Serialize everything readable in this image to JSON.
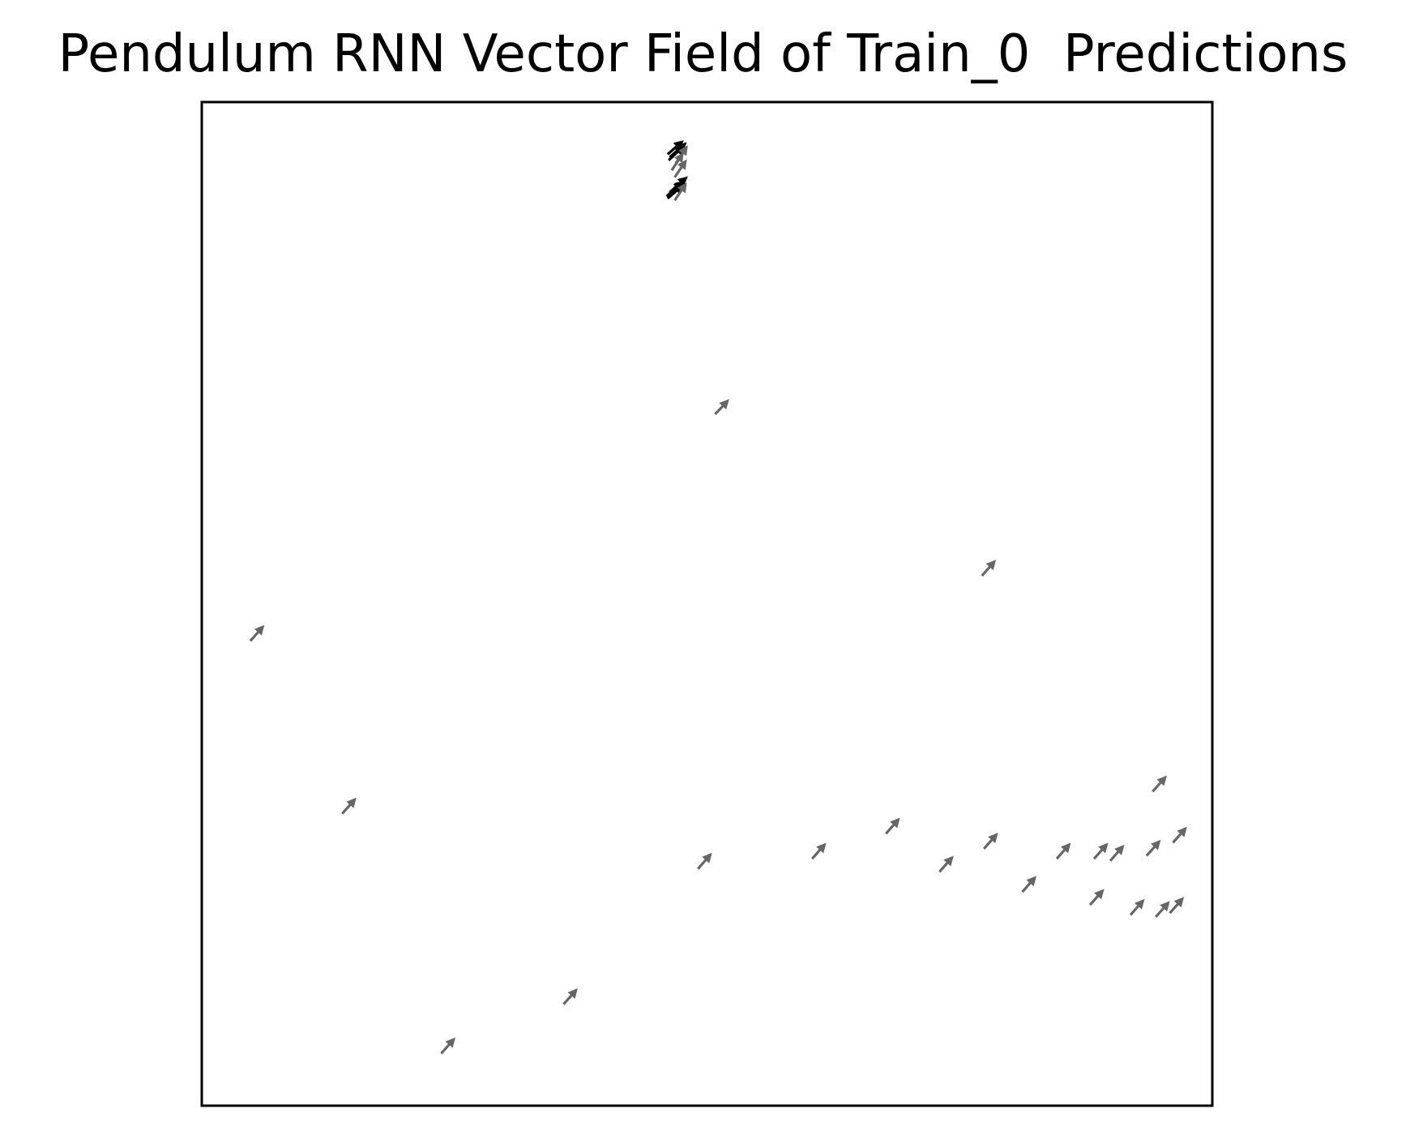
{
  "chart_data": {
    "type": "quiver",
    "title": "Pendulum RNN Vector Field of Train_0  Predictions",
    "xlabel": "",
    "ylabel": "",
    "xlim": [
      0,
      1
    ],
    "ylim": [
      0,
      1
    ],
    "axis_ticks": "none",
    "grid": false,
    "legend": "none",
    "arrow_color": "#666666",
    "cluster_color": "#000000",
    "vectors": [
      {
        "x": 0.463,
        "y": 0.91,
        "u": 0.018,
        "v": 0.016
      },
      {
        "x": 0.462,
        "y": 0.908,
        "u": 0.016,
        "v": 0.014
      },
      {
        "x": 0.461,
        "y": 0.904,
        "u": 0.016,
        "v": 0.014
      },
      {
        "x": 0.46,
        "y": 0.906,
        "u": 0.017,
        "v": 0.015
      },
      {
        "x": 0.462,
        "y": 0.942,
        "u": 0.016,
        "v": 0.015
      },
      {
        "x": 0.463,
        "y": 0.945,
        "u": 0.017,
        "v": 0.015
      },
      {
        "x": 0.461,
        "y": 0.948,
        "u": 0.016,
        "v": 0.014
      },
      {
        "x": 0.469,
        "y": 0.939,
        "u": 0.012,
        "v": 0.018
      },
      {
        "x": 0.465,
        "y": 0.932,
        "u": 0.012,
        "v": 0.018
      },
      {
        "x": 0.468,
        "y": 0.925,
        "u": 0.012,
        "v": 0.018
      },
      {
        "x": 0.468,
        "y": 0.902,
        "u": 0.012,
        "v": 0.018
      },
      {
        "x": 0.508,
        "y": 0.689,
        "u": 0.014,
        "v": 0.015
      },
      {
        "x": 0.772,
        "y": 0.528,
        "u": 0.014,
        "v": 0.016
      },
      {
        "x": 0.048,
        "y": 0.463,
        "u": 0.014,
        "v": 0.016
      },
      {
        "x": 0.139,
        "y": 0.291,
        "u": 0.014,
        "v": 0.016
      },
      {
        "x": 0.491,
        "y": 0.236,
        "u": 0.014,
        "v": 0.016
      },
      {
        "x": 0.604,
        "y": 0.246,
        "u": 0.014,
        "v": 0.016
      },
      {
        "x": 0.677,
        "y": 0.271,
        "u": 0.014,
        "v": 0.016
      },
      {
        "x": 0.73,
        "y": 0.233,
        "u": 0.014,
        "v": 0.016
      },
      {
        "x": 0.774,
        "y": 0.256,
        "u": 0.014,
        "v": 0.016
      },
      {
        "x": 0.812,
        "y": 0.213,
        "u": 0.014,
        "v": 0.016
      },
      {
        "x": 0.846,
        "y": 0.246,
        "u": 0.014,
        "v": 0.016
      },
      {
        "x": 0.879,
        "y": 0.2,
        "u": 0.014,
        "v": 0.016
      },
      {
        "x": 0.883,
        "y": 0.246,
        "u": 0.014,
        "v": 0.016
      },
      {
        "x": 0.899,
        "y": 0.244,
        "u": 0.014,
        "v": 0.016
      },
      {
        "x": 0.919,
        "y": 0.19,
        "u": 0.014,
        "v": 0.016
      },
      {
        "x": 0.935,
        "y": 0.249,
        "u": 0.014,
        "v": 0.016
      },
      {
        "x": 0.941,
        "y": 0.313,
        "u": 0.014,
        "v": 0.016
      },
      {
        "x": 0.944,
        "y": 0.188,
        "u": 0.014,
        "v": 0.016
      },
      {
        "x": 0.958,
        "y": 0.192,
        "u": 0.014,
        "v": 0.016
      },
      {
        "x": 0.961,
        "y": 0.262,
        "u": 0.014,
        "v": 0.016
      },
      {
        "x": 0.358,
        "y": 0.101,
        "u": 0.014,
        "v": 0.016
      },
      {
        "x": 0.237,
        "y": 0.052,
        "u": 0.014,
        "v": 0.016
      }
    ]
  }
}
